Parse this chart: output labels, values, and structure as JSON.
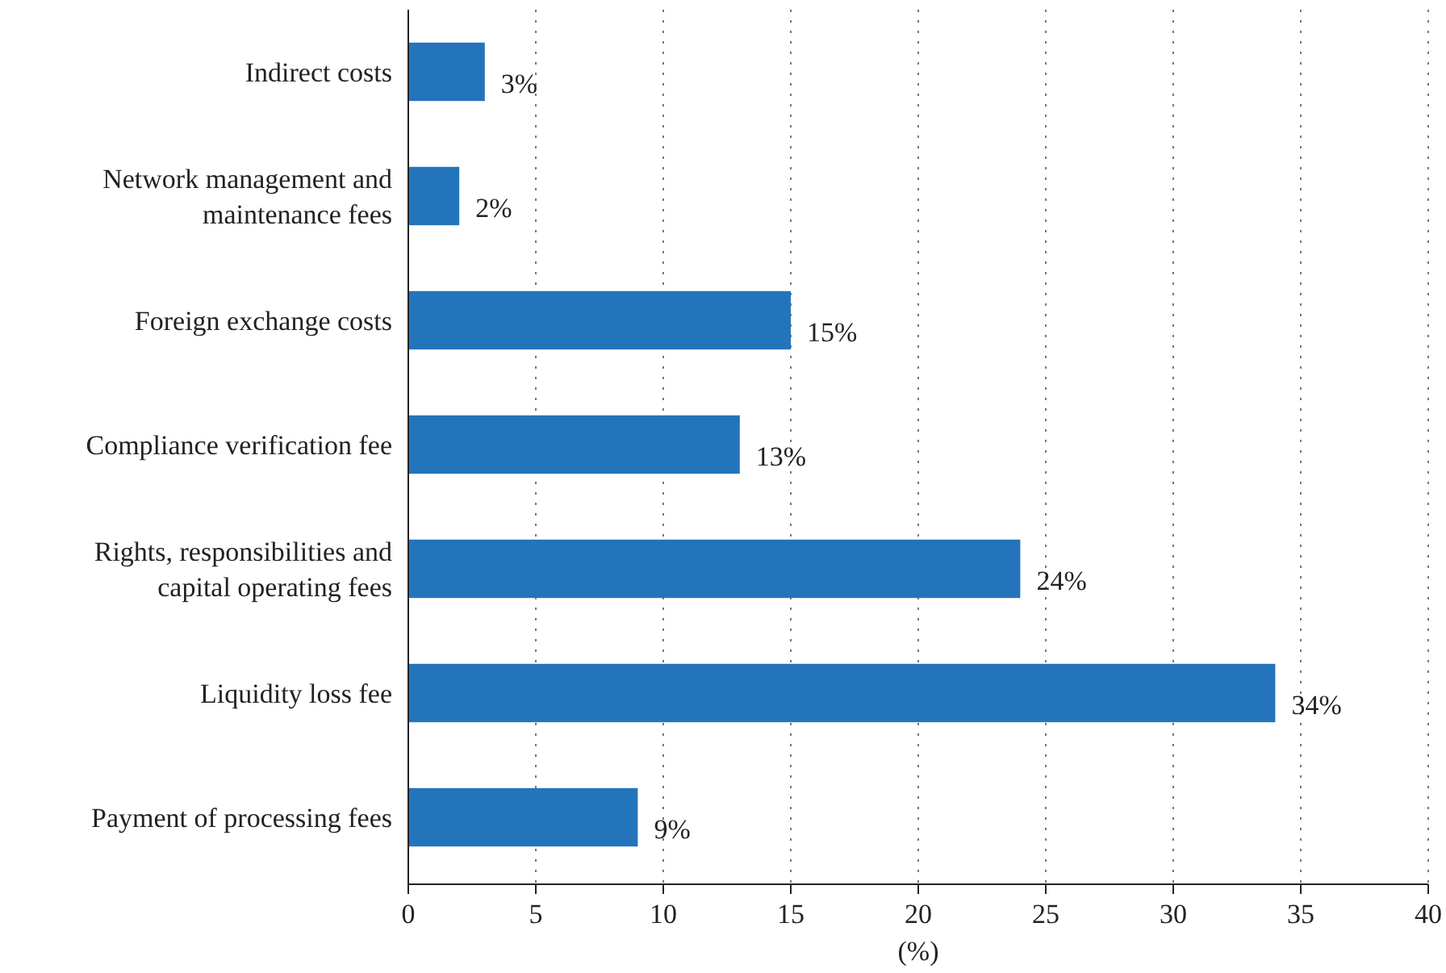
{
  "chart_data": {
    "type": "bar",
    "orientation": "horizontal",
    "xlabel": "(%)",
    "categories": [
      "Indirect costs",
      "Network management and maintenance fees",
      "Foreign exchange costs",
      "Compliance verification fee",
      "Rights, responsibilities and capital operating fees",
      "Liquidity loss fee",
      "Payment of processing fees"
    ],
    "values": [
      3,
      2,
      15,
      13,
      24,
      34,
      9
    ],
    "value_labels": [
      "3%",
      "2%",
      "15%",
      "13%",
      "24%",
      "34%",
      "9%"
    ],
    "color": "#2474bc",
    "xlim": [
      0,
      40
    ],
    "xticks": [
      0,
      5,
      10,
      15,
      20,
      25,
      30,
      35,
      40
    ],
    "grid": "x"
  }
}
